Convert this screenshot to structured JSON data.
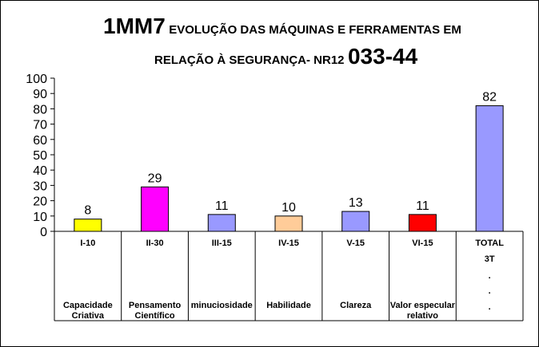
{
  "chart_data": {
    "type": "bar",
    "title": {
      "line1_big": "1MM7",
      "line1_rest": "EVOLUÇÃO DAS MÁQUINAS E FERRAMENTAS EM",
      "line2_rest": "RELAÇÃO À SEGURANÇA- NR12",
      "line2_big": "033-44"
    },
    "categories": [
      {
        "code": "I-10",
        "desc": [
          "Capacidade",
          "Criativa"
        ]
      },
      {
        "code": "II-30",
        "desc": [
          "Pensamento",
          "Científico"
        ]
      },
      {
        "code": "III-15",
        "desc": [
          "minuciosidade"
        ]
      },
      {
        "code": "IV-15",
        "desc": [
          "Habilidade"
        ]
      },
      {
        "code": "V-15",
        "desc": [
          "Clareza"
        ]
      },
      {
        "code": "VI-15",
        "desc": [
          "Valor especular",
          "relativo"
        ]
      },
      {
        "code": "TOTAL",
        "desc": [
          "3T",
          ".",
          ".",
          "."
        ]
      }
    ],
    "values": [
      8,
      29,
      11,
      10,
      13,
      11,
      82
    ],
    "data_labels": [
      "8",
      "29",
      "11",
      "10",
      "13",
      "11",
      "82"
    ],
    "colors": [
      "#ffff00",
      "#ff00ff",
      "#9999ff",
      "#ffcc99",
      "#9999ff",
      "#ff0000",
      "#9999ff"
    ],
    "ylim": [
      0,
      100
    ],
    "yticks": [
      "0",
      "10",
      "20",
      "30",
      "40",
      "50",
      "60",
      "70",
      "80",
      "90",
      "100"
    ],
    "grid": false,
    "legend": "none"
  }
}
